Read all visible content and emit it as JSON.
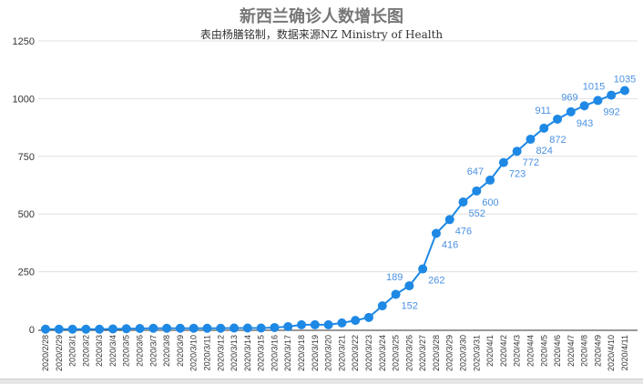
{
  "chart_data": {
    "type": "line",
    "title": "新西兰确诊人数增长图",
    "subtitle": "表由杨膳铭制，数据来源NZ Ministry of Health",
    "ylim": [
      0,
      1250
    ],
    "yticks": [
      0,
      250,
      500,
      750,
      1000,
      1250
    ],
    "grid": true,
    "color": "#1e88e5",
    "label_color": "#4a90e2",
    "categories": [
      "2020/2/28",
      "2020/2/29",
      "2020/3/1",
      "2020/3/2",
      "2020/3/3",
      "2020/3/4",
      "2020/3/5",
      "2020/3/6",
      "2020/3/7",
      "2020/3/8",
      "2020/3/9",
      "2020/3/10",
      "2020/3/11",
      "2020/3/12",
      "2020/3/13",
      "2020/3/14",
      "2020/3/15",
      "2020/3/16",
      "2020/3/17",
      "2020/3/18",
      "2020/3/19",
      "2020/3/20",
      "2020/3/21",
      "2020/3/22",
      "2020/3/23",
      "2020/3/24",
      "2020/3/25",
      "2020/3/26",
      "2020/3/27",
      "2020/3/28",
      "2020/3/29",
      "2020/3/30",
      "2020/3/31",
      "2020/4/1",
      "2020/4/2",
      "2020/4/3",
      "2020/4/4",
      "2020/4/5",
      "2020/4/6",
      "2020/4/7",
      "2020/4/8",
      "2020/4/9",
      "2020/4/10",
      "2020/4/11"
    ],
    "values": [
      1,
      1,
      1,
      1,
      1,
      2,
      3,
      4,
      5,
      5,
      5,
      5,
      5,
      5,
      6,
      6,
      6,
      8,
      12,
      20,
      20,
      20,
      28,
      39,
      52,
      102,
      152,
      189,
      262,
      416,
      476,
      552,
      600,
      647,
      723,
      772,
      824,
      872,
      911,
      943,
      969,
      992,
      1015,
      1035
    ],
    "labeled_from_index": 26
  }
}
